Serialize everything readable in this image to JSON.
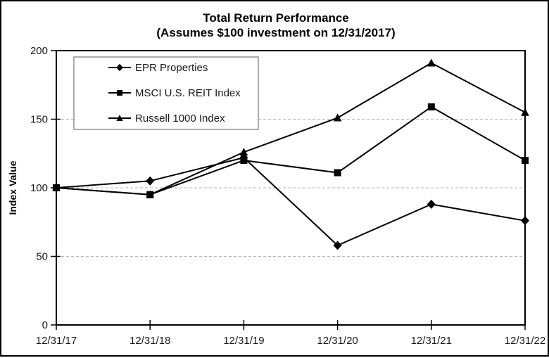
{
  "title": {
    "line1": "Total Return Performance",
    "line2": "(Assumes $100 investment on 12/31/2017)"
  },
  "chart_data": {
    "type": "line",
    "title": "Total Return Performance",
    "subtitle": "(Assumes $100 investment on 12/31/2017)",
    "x": [
      "12/31/17",
      "12/31/18",
      "12/31/19",
      "12/31/20",
      "12/31/21",
      "12/31/22"
    ],
    "series": [
      {
        "name": "EPR Properties",
        "marker": "diamond",
        "values": [
          100,
          105,
          122,
          58,
          88,
          76
        ]
      },
      {
        "name": "MSCI U.S. REIT Index",
        "marker": "square",
        "values": [
          100,
          95,
          120,
          111,
          159,
          120
        ]
      },
      {
        "name": "Russell 1000 Index",
        "marker": "triangle",
        "values": [
          100,
          95,
          126,
          151,
          191,
          155
        ]
      }
    ],
    "xlabel": "",
    "ylabel": "Index Value",
    "ylim": [
      0,
      200
    ],
    "ytick_step": 50,
    "yticks": [
      0,
      50,
      100,
      150,
      200
    ],
    "grid": "horizontal dashed at 50, 100, 150",
    "legend_position": "upper-left"
  },
  "colors": {
    "line": "#000000",
    "grid": "#b3b3b3",
    "legend_border": "#808080",
    "text": "#1a1a1a",
    "background": "#ffffff"
  }
}
